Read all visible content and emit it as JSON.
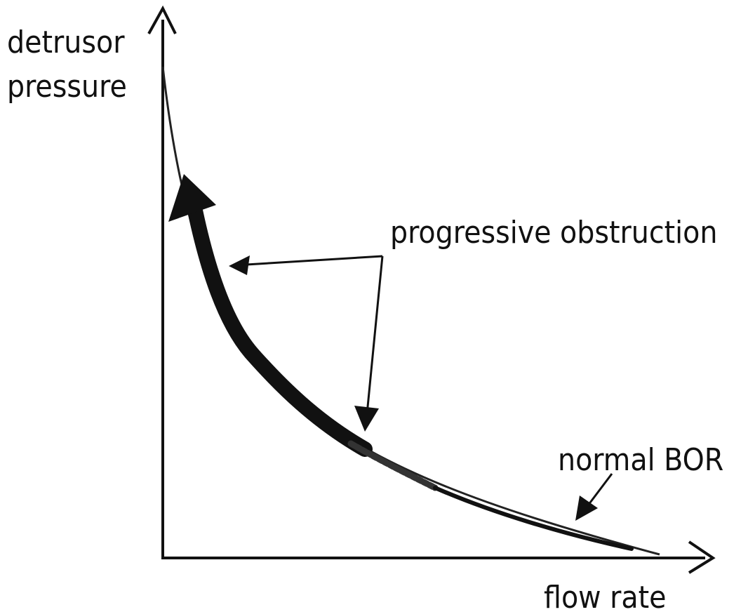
{
  "y_axis_label": [
    "detrusor",
    "pressure"
  ],
  "x_axis_label": "flow rate",
  "annotations": {
    "obstruction": "progressive obstruction",
    "normal": "normal BOR"
  }
}
